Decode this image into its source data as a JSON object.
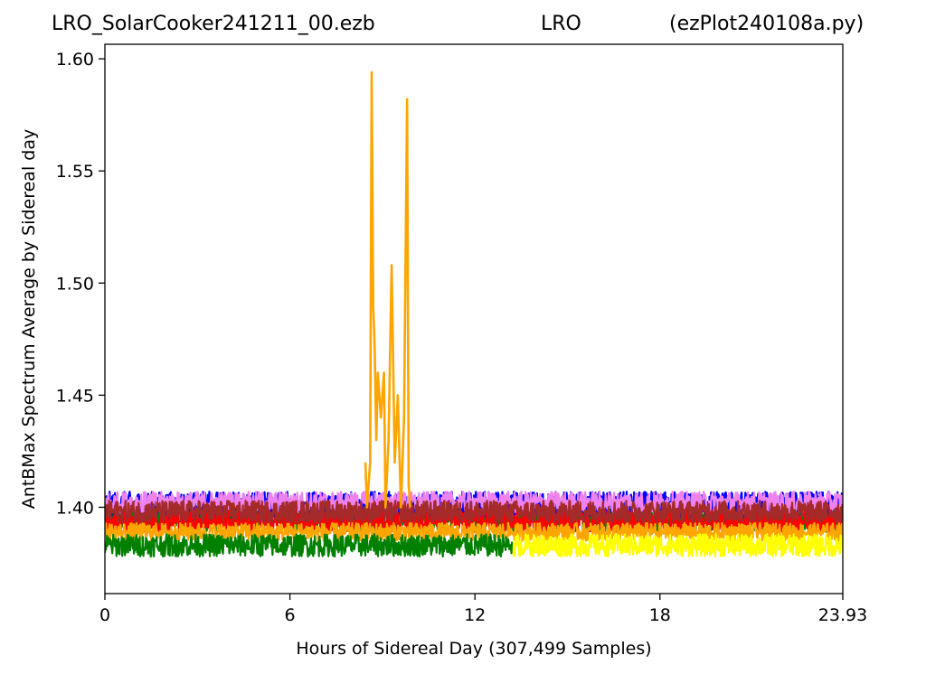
{
  "title": {
    "file": "LRO_SolarCooker241211_00.ezb",
    "station": "LRO",
    "program": "(ezPlot240108a.py)"
  },
  "chart_data": {
    "type": "line",
    "xlabel": "Hours of Sidereal Day  (307,499 Samples)",
    "ylabel": "AntBMax Spectrum Average by Sidereal day",
    "xlim": [
      0,
      23.93
    ],
    "ylim": [
      1.3615,
      1.6065
    ],
    "xticks": [
      {
        "value": 0,
        "label": "0"
      },
      {
        "value": 6,
        "label": "6"
      },
      {
        "value": 12,
        "label": "12"
      },
      {
        "value": 18,
        "label": "18"
      },
      {
        "value": 23.93,
        "label": "23.93"
      }
    ],
    "yticks": [
      {
        "value": 1.4,
        "label": "1.40"
      },
      {
        "value": 1.45,
        "label": "1.45"
      },
      {
        "value": 1.5,
        "label": "1.50"
      },
      {
        "value": 1.55,
        "label": "1.55"
      },
      {
        "value": 1.6,
        "label": "1.60"
      }
    ],
    "grid": false,
    "series": [
      {
        "color": "#008000",
        "x_range": [
          0,
          23.93
        ],
        "center": 1.396,
        "amplitude": 0.007
      },
      {
        "color": "#0000ff",
        "x_range": [
          0,
          23.93
        ],
        "center": 1.401,
        "amplitude": 0.006
      },
      {
        "color": "#ee82ee",
        "x_range": [
          0,
          23.93
        ],
        "center": 1.402,
        "amplitude": 0.005
      },
      {
        "color": "#ff0000",
        "x_range": [
          0,
          23.93
        ],
        "center": 1.394,
        "amplitude": 0.005
      },
      {
        "color": "#a52a2a",
        "x_range": [
          0,
          23.93
        ],
        "center": 1.398,
        "amplitude": 0.005
      },
      {
        "color": "#ffa500",
        "x_range": [
          0,
          23.93
        ],
        "center": 1.389,
        "amplitude": 0.004
      },
      {
        "color": "#ffff00",
        "x_range": [
          13.2,
          23.93
        ],
        "center": 1.383,
        "amplitude": 0.005
      },
      {
        "color": "#008000",
        "x_range": [
          0,
          13.2
        ],
        "center": 1.383,
        "amplitude": 0.005
      },
      {
        "color": "#ffa500",
        "x_range": [
          8.2,
          9.9
        ],
        "center": 1.4,
        "amplitude": 0.0,
        "spikes": [
          {
            "x": 8.45,
            "y": 1.42
          },
          {
            "x": 8.5,
            "y": 1.4
          },
          {
            "x": 8.6,
            "y": 1.42
          },
          {
            "x": 8.65,
            "y": 1.594
          },
          {
            "x": 8.7,
            "y": 1.49
          },
          {
            "x": 8.75,
            "y": 1.47
          },
          {
            "x": 8.8,
            "y": 1.43
          },
          {
            "x": 8.85,
            "y": 1.46
          },
          {
            "x": 8.95,
            "y": 1.44
          },
          {
            "x": 9.05,
            "y": 1.46
          },
          {
            "x": 9.1,
            "y": 1.4
          },
          {
            "x": 9.2,
            "y": 1.43
          },
          {
            "x": 9.3,
            "y": 1.508
          },
          {
            "x": 9.4,
            "y": 1.42
          },
          {
            "x": 9.5,
            "y": 1.45
          },
          {
            "x": 9.6,
            "y": 1.4
          },
          {
            "x": 9.7,
            "y": 1.44
          },
          {
            "x": 9.8,
            "y": 1.582
          },
          {
            "x": 9.85,
            "y": 1.41
          },
          {
            "x": 9.9,
            "y": 1.4
          }
        ]
      }
    ]
  }
}
